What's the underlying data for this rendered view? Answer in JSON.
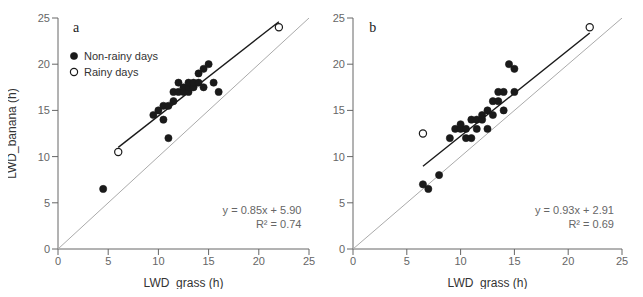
{
  "chart_data": [
    {
      "type": "scatter",
      "title": "a",
      "xlabel": "LWD_grass (h)",
      "ylabel": "LWD_banana (h)",
      "xlim": [
        0,
        25
      ],
      "ylim": [
        0,
        25
      ],
      "xticks": [
        0,
        5,
        10,
        15,
        20,
        25
      ],
      "yticks": [
        0,
        5,
        10,
        15,
        20,
        25
      ],
      "grid": false,
      "legend": "upper left",
      "annotations": [
        {
          "text": "y = 0.85x + 5.90",
          "color": "#666666"
        },
        {
          "text": "R² = 0.74",
          "color": "#666666"
        }
      ],
      "series": [
        {
          "type": "line",
          "line_style": "solid",
          "color": "#aaaaaa",
          "x": [
            0,
            25
          ],
          "values": [
            0,
            25
          ]
        },
        {
          "type": "line",
          "line_style": "solid",
          "color": "#1a1a1a",
          "x": [
            6,
            22
          ],
          "values": [
            11,
            24.6
          ]
        },
        {
          "name": "Non-rainy days",
          "type": "scatter",
          "marker": "circle",
          "color": "#1a1a1a",
          "x": [
            4.5,
            9.5,
            10,
            10.5,
            10.5,
            11,
            11,
            11.5,
            11.5,
            12,
            12,
            12.5,
            12.5,
            13,
            13,
            13,
            13.5,
            13.5,
            14,
            14,
            14.5,
            14.5,
            15,
            15.5,
            16
          ],
          "values": [
            6.5,
            14.5,
            15,
            14,
            15.5,
            12,
            15.5,
            16,
            17,
            17,
            18,
            17,
            17.5,
            17,
            17.5,
            18,
            17.5,
            18,
            18,
            19,
            17.5,
            19.5,
            20,
            18,
            17
          ]
        },
        {
          "name": "Rainy days",
          "type": "scatter",
          "marker": "open circle",
          "color": "#1a1a1a",
          "x": [
            6,
            22
          ],
          "values": [
            10.5,
            24
          ]
        }
      ]
    },
    {
      "type": "scatter",
      "title": "b",
      "xlabel": "LWD_grass (h)",
      "xlim": [
        0,
        25
      ],
      "ylim": [
        0,
        25
      ],
      "xticks": [
        0,
        5,
        10,
        15,
        20,
        25
      ],
      "yticks": [
        0,
        5,
        10,
        15,
        20,
        25
      ],
      "grid": false,
      "annotations": [
        {
          "text": "y = 0.93x + 2.91",
          "color": "#666666"
        },
        {
          "text": "R² = 0.69",
          "color": "#666666"
        }
      ],
      "series": [
        {
          "type": "line",
          "line_style": "solid",
          "color": "#aaaaaa",
          "x": [
            0,
            25
          ],
          "values": [
            0,
            25
          ]
        },
        {
          "type": "line",
          "line_style": "solid",
          "color": "#1a1a1a",
          "x": [
            6.5,
            22
          ],
          "values": [
            8.955,
            23.37
          ]
        },
        {
          "name": "Non-rainy days",
          "type": "scatter",
          "marker": "circle",
          "color": "#1a1a1a",
          "x": [
            6.5,
            7,
            8,
            9,
            9.5,
            10,
            10,
            10.5,
            10.5,
            11,
            11,
            11.5,
            11.5,
            12,
            12,
            12.5,
            12.5,
            13,
            13,
            13.5,
            13.5,
            14,
            14,
            14.5,
            15,
            15
          ],
          "values": [
            7,
            6.5,
            8,
            12,
            13,
            13,
            13.5,
            12,
            13,
            12,
            14,
            13,
            14,
            14,
            14.5,
            13,
            15,
            14.5,
            16,
            16,
            17,
            15,
            17,
            20,
            17,
            19.5
          ]
        },
        {
          "name": "Rainy days",
          "type": "scatter",
          "marker": "open circle",
          "color": "#1a1a1a",
          "x": [
            6.5,
            22
          ],
          "values": [
            12.5,
            24
          ]
        }
      ]
    }
  ]
}
